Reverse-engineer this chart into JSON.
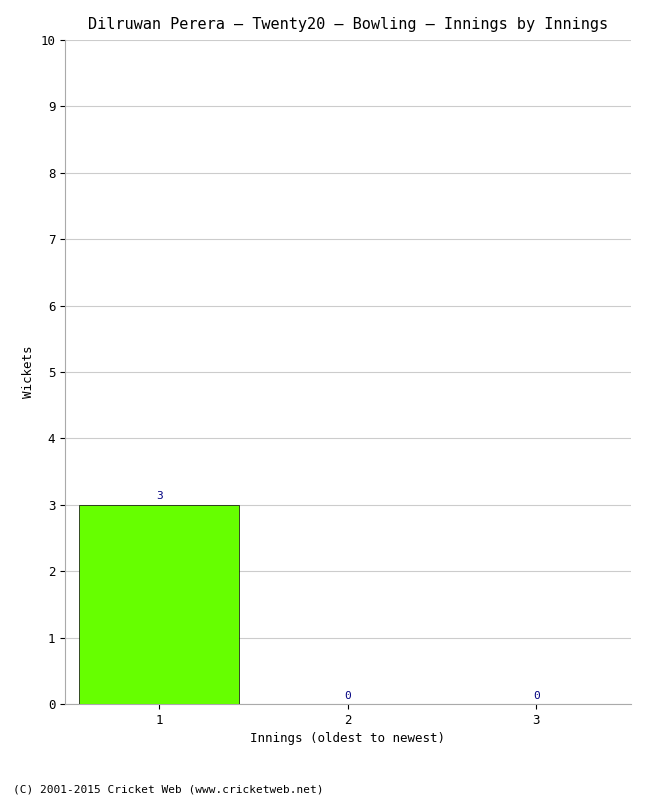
{
  "title": "Dilruwan Perera – Twenty20 – Bowling – Innings by Innings",
  "xlabel": "Innings (oldest to newest)",
  "ylabel": "Wickets",
  "categories": [
    "1",
    "2",
    "3"
  ],
  "values": [
    3,
    0,
    0
  ],
  "bar_color": "#66ff00",
  "bar_edge_color": "#000000",
  "ylim": [
    0,
    10
  ],
  "yticks": [
    0,
    1,
    2,
    3,
    4,
    5,
    6,
    7,
    8,
    9,
    10
  ],
  "value_label_color": "#000080",
  "background_color": "#ffffff",
  "grid_color": "#cccccc",
  "footer": "(C) 2001-2015 Cricket Web (www.cricketweb.net)",
  "title_fontsize": 11,
  "label_fontsize": 9,
  "tick_fontsize": 9,
  "footer_fontsize": 8,
  "value_label_fontsize": 8,
  "bar_width": 0.85
}
